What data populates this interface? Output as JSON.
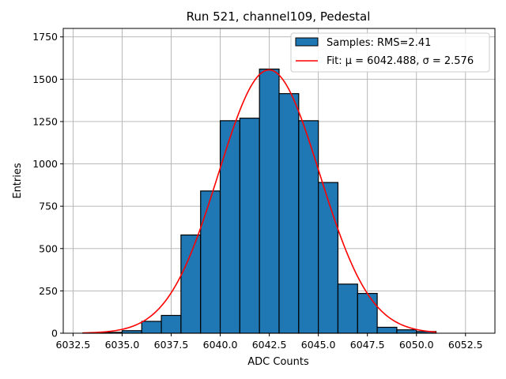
{
  "chart_data": {
    "type": "bar",
    "title": "Run 521, channel109, Pedestal",
    "xlabel": "ADC Counts",
    "ylabel": "Entries",
    "xlim": [
      6032.0,
      6054.0
    ],
    "ylim": [
      0,
      1800
    ],
    "x_ticks": [
      6032.5,
      6035.0,
      6037.5,
      6040.0,
      6042.5,
      6045.0,
      6047.5,
      6050.0,
      6052.5
    ],
    "x_tick_labels": [
      "6032.5",
      "6035.0",
      "6037.5",
      "6040.0",
      "6042.5",
      "6045.0",
      "6047.5",
      "6050.0",
      "6052.5"
    ],
    "y_ticks": [
      0,
      250,
      500,
      750,
      1000,
      1250,
      1500,
      1750
    ],
    "y_tick_labels": [
      "0",
      "250",
      "500",
      "750",
      "1000",
      "1250",
      "1500",
      "1750"
    ],
    "grid": true,
    "legend_position": "top-right",
    "bin_edges": [
      6033,
      6034,
      6035,
      6036,
      6037,
      6038,
      6039,
      6040,
      6041,
      6042,
      6043,
      6044,
      6045,
      6046,
      6047,
      6048,
      6049,
      6050,
      6051
    ],
    "series": [
      {
        "name": "Samples: RMS=2.41",
        "kind": "histogram",
        "color": "#1f77b4",
        "values": [
          2,
          5,
          15,
          70,
          105,
          580,
          840,
          1255,
          1270,
          1560,
          1415,
          1255,
          890,
          290,
          235,
          35,
          20,
          10
        ]
      },
      {
        "name": "Fit: μ = 6042.488, σ = 2.576",
        "kind": "gaussian-fit",
        "color": "#ff0000",
        "mu": 6042.488,
        "sigma": 2.576,
        "amplitude": 1555,
        "x_range": [
          6033,
          6051
        ]
      }
    ]
  }
}
